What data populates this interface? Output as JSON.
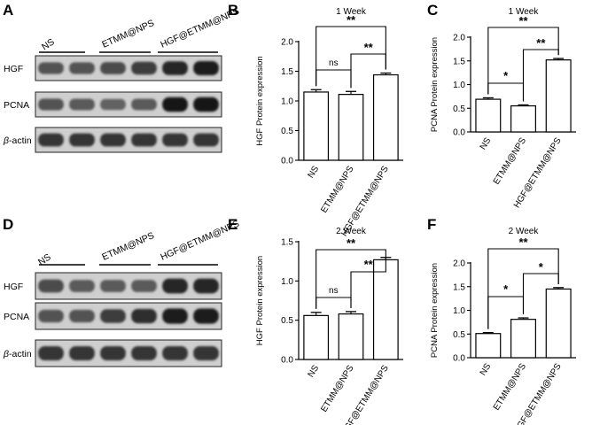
{
  "panels": {
    "A": "A",
    "B": "B",
    "C": "C",
    "D": "D",
    "E": "E",
    "F": "F"
  },
  "blots": [
    {
      "panel": "A",
      "groups": [
        "NS",
        "ETMM@NPS",
        "HGF@ETMM@NPS"
      ],
      "rows": [
        {
          "label": "HGF",
          "intensity": [
            0.55,
            0.55,
            0.6,
            0.7,
            0.85,
            0.9
          ]
        },
        {
          "label": "PCNA",
          "intensity": [
            0.55,
            0.5,
            0.45,
            0.5,
            0.95,
            0.95
          ]
        },
        {
          "label": "β-actin",
          "intensity": [
            0.75,
            0.75,
            0.75,
            0.75,
            0.75,
            0.75
          ]
        }
      ]
    },
    {
      "panel": "D",
      "groups": [
        "NS",
        "ETMM@NPS",
        "HGF@ETMM@NPS"
      ],
      "rows": [
        {
          "label": "HGF",
          "intensity": [
            0.6,
            0.5,
            0.5,
            0.5,
            0.85,
            0.85
          ]
        },
        {
          "label": "PCNA",
          "intensity": [
            0.55,
            0.55,
            0.7,
            0.8,
            0.9,
            0.9
          ]
        },
        {
          "label": "β-actin",
          "intensity": [
            0.75,
            0.75,
            0.75,
            0.75,
            0.75,
            0.75
          ]
        }
      ]
    }
  ],
  "chart_data": [
    {
      "panel": "B",
      "type": "bar",
      "title": "1 Week",
      "ylabel": "HGF Protein expression",
      "ylim": [
        0,
        2.0
      ],
      "yticks": [
        "0.0",
        "0.5",
        "1.0",
        "1.5",
        "2.0"
      ],
      "categories": [
        "NS",
        "ETMM@NPS",
        "HGF@ETMM@NPS"
      ],
      "values": [
        1.15,
        1.11,
        1.44
      ],
      "errors": [
        0.04,
        0.05,
        0.03
      ],
      "comparisons": [
        {
          "from": 0,
          "to": 2,
          "label": "**"
        },
        {
          "from": 1,
          "to": 2,
          "label": "**"
        },
        {
          "from": 0,
          "to": 1,
          "label": "ns"
        }
      ]
    },
    {
      "panel": "C",
      "type": "bar",
      "title": "1 Week",
      "ylabel": "PCNA Protein expression",
      "ylim": [
        0,
        2.0
      ],
      "yticks": [
        "0.0",
        "0.5",
        "1.0",
        "1.5",
        "2.0"
      ],
      "categories": [
        "NS",
        "ETMM@NPS",
        "HGF@ETMM@NPS"
      ],
      "values": [
        0.69,
        0.55,
        1.52
      ],
      "errors": [
        0.03,
        0.02,
        0.03
      ],
      "comparisons": [
        {
          "from": 0,
          "to": 2,
          "label": "**"
        },
        {
          "from": 1,
          "to": 2,
          "label": "**"
        },
        {
          "from": 0,
          "to": 1,
          "label": "*"
        }
      ]
    },
    {
      "panel": "E",
      "type": "bar",
      "title": "2 Week",
      "ylabel": "HGF Protein expression",
      "ylim": [
        0,
        1.5
      ],
      "yticks": [
        "0.0",
        "0.5",
        "1.0",
        "1.5"
      ],
      "categories": [
        "NS",
        "ETMM@NPS",
        "HGF@ETMM@NPS"
      ],
      "values": [
        0.56,
        0.58,
        1.27
      ],
      "errors": [
        0.04,
        0.03,
        0.03
      ],
      "comparisons": [
        {
          "from": 0,
          "to": 2,
          "label": "**"
        },
        {
          "from": 1,
          "to": 2,
          "label": "**"
        },
        {
          "from": 0,
          "to": 1,
          "label": "ns"
        }
      ]
    },
    {
      "panel": "F",
      "type": "bar",
      "title": "2 Week",
      "ylabel": "PCNA Protein expression",
      "ylim": [
        0,
        2.0
      ],
      "yticks": [
        "0.0",
        "0.5",
        "1.0",
        "1.5",
        "2.0"
      ],
      "categories": [
        "NS",
        "ETMM@NPS",
        "HGF@ETMM@NPS"
      ],
      "values": [
        0.51,
        0.81,
        1.45
      ],
      "errors": [
        0.02,
        0.03,
        0.03
      ],
      "comparisons": [
        {
          "from": 0,
          "to": 2,
          "label": "**"
        },
        {
          "from": 1,
          "to": 2,
          "label": "*"
        },
        {
          "from": 0,
          "to": 1,
          "label": "*"
        }
      ]
    }
  ]
}
